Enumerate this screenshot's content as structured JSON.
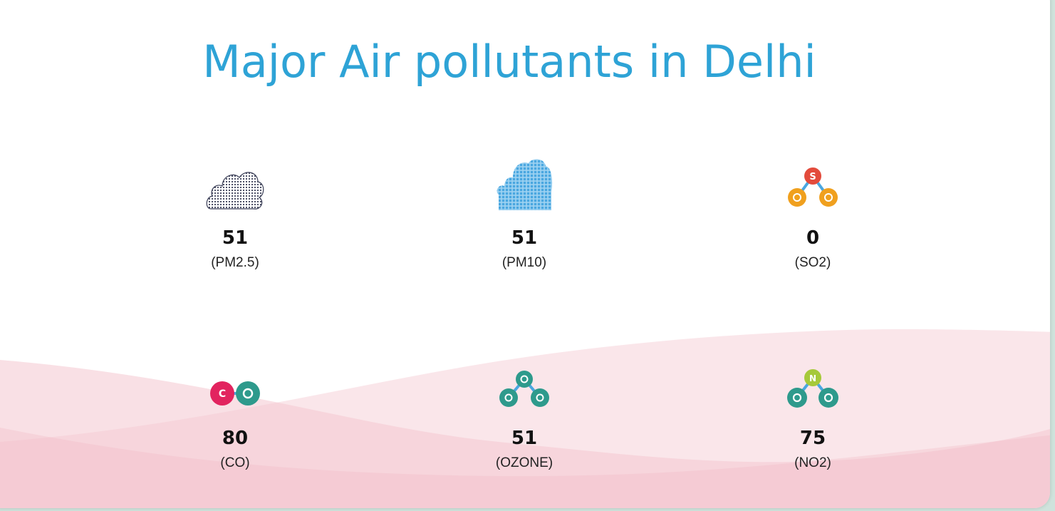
{
  "title": "Major Air pollutants in Delhi",
  "pollutants": [
    {
      "value": "51",
      "label": "(PM2.5)",
      "icon": "pm25-cloud-icon"
    },
    {
      "value": "51",
      "label": "(PM10)",
      "icon": "pm10-cloud-icon"
    },
    {
      "value": "0",
      "label": "(SO2)",
      "icon": "so2-molecule-icon"
    },
    {
      "value": "80",
      "label": "(CO)",
      "icon": "co-molecule-icon"
    },
    {
      "value": "51",
      "label": "(OZONE)",
      "icon": "ozone-molecule-icon"
    },
    {
      "value": "75",
      "label": "(NO2)",
      "icon": "no2-molecule-icon"
    }
  ],
  "colors": {
    "title": "#2ea3d6",
    "wave": "#f4c7d0",
    "carbon": "#e2245f",
    "oxygen_teal": "#2e9a8c",
    "oxygen_orange": "#f0a01e",
    "sulfur": "#e34b3c",
    "nitrogen": "#a6c93a"
  }
}
